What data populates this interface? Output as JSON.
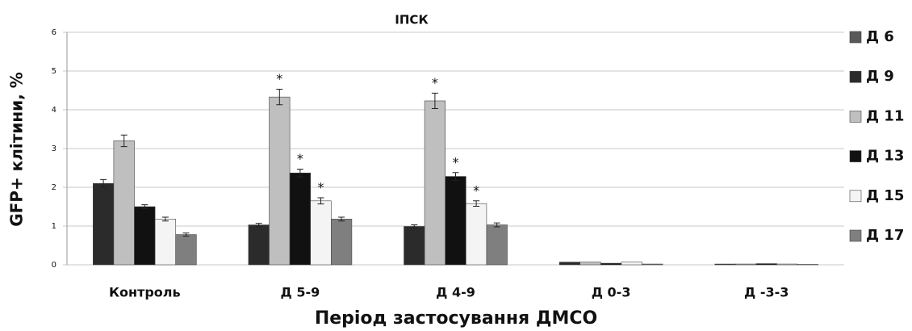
{
  "chart_data": {
    "type": "bar",
    "title": "ІПСК",
    "x_label": "Період застосування ДМСО",
    "y_label": "GFP+ клітини, %",
    "categories": [
      "Контроль",
      "Д 5-9",
      "Д 4-9",
      "Д 0-3",
      "Д -3-3"
    ],
    "ylim": [
      0,
      6
    ],
    "yticks": [
      0,
      1,
      2,
      3,
      4,
      5,
      6
    ],
    "grid": true,
    "legend": "right",
    "series": [
      {
        "name": "Д 6",
        "color": "#595959",
        "values": [
          null,
          null,
          null,
          null,
          null
        ],
        "errors": [
          null,
          null,
          null,
          null,
          null
        ],
        "significance": [
          null,
          null,
          null,
          null,
          null
        ]
      },
      {
        "name": "Д 9",
        "color": "#2b2b2b",
        "values": [
          2.1,
          1.03,
          0.99,
          0.07,
          0.02
        ],
        "errors": [
          0.1,
          0.04,
          0.04,
          null,
          null
        ],
        "significance": [
          null,
          null,
          null,
          null,
          null
        ]
      },
      {
        "name": "Д 11",
        "color": "#bfbfbf",
        "values": [
          3.2,
          4.33,
          4.23,
          0.07,
          0.02
        ],
        "errors": [
          0.15,
          0.2,
          0.2,
          null,
          null
        ],
        "significance": [
          null,
          "*",
          "*",
          null,
          null
        ]
      },
      {
        "name": "Д 13",
        "color": "#111111",
        "values": [
          1.5,
          2.37,
          2.28,
          0.04,
          0.03
        ],
        "errors": [
          0.05,
          0.1,
          0.1,
          null,
          null
        ],
        "significance": [
          null,
          "*",
          "*",
          null,
          null
        ]
      },
      {
        "name": "Д 15",
        "color": "#f4f4f4",
        "values": [
          1.18,
          1.65,
          1.58,
          0.07,
          0.02
        ],
        "errors": [
          0.05,
          0.08,
          0.07,
          null,
          null
        ],
        "significance": [
          null,
          "*",
          "*",
          null,
          null
        ]
      },
      {
        "name": "Д 17",
        "color": "#7f7f7f",
        "values": [
          0.78,
          1.18,
          1.03,
          0.02,
          0.01
        ],
        "errors": [
          0.04,
          0.05,
          0.05,
          null,
          null
        ],
        "significance": [
          null,
          null,
          null,
          null,
          null
        ]
      }
    ]
  }
}
